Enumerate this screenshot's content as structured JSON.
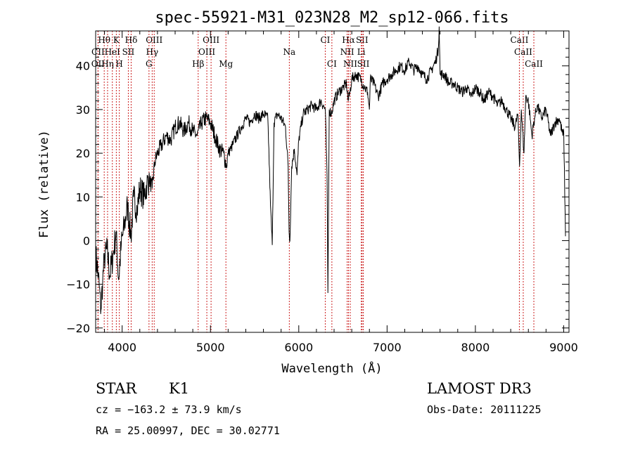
{
  "chart_data": {
    "type": "line",
    "title": "spec-55921-M31_023N28_M2_sp12-066.fits",
    "xlabel": "Wavelength (Å)",
    "ylabel": "Flux (relative)",
    "xlim": [
      3700,
      9060
    ],
    "ylim": [
      -21,
      48
    ],
    "xticks": [
      4000,
      5000,
      6000,
      7000,
      8000,
      9000
    ],
    "yticks": [
      -20,
      -10,
      0,
      10,
      20,
      30,
      40
    ],
    "grid": false,
    "series": [
      {
        "name": "flux",
        "points": [
          [
            3700,
            -3
          ],
          [
            3730,
            -8
          ],
          [
            3760,
            -16
          ],
          [
            3780,
            -9
          ],
          [
            3800,
            -4
          ],
          [
            3830,
            -2
          ],
          [
            3860,
            -8
          ],
          [
            3900,
            -3
          ],
          [
            3930,
            2
          ],
          [
            3960,
            -9
          ],
          [
            3990,
            -1
          ],
          [
            4030,
            4
          ],
          [
            4060,
            8
          ],
          [
            4100,
            1
          ],
          [
            4130,
            10
          ],
          [
            4170,
            7
          ],
          [
            4200,
            12
          ],
          [
            4250,
            10
          ],
          [
            4280,
            13
          ],
          [
            4310,
            14
          ],
          [
            4340,
            12
          ],
          [
            4370,
            18
          ],
          [
            4400,
            20
          ],
          [
            4450,
            22
          ],
          [
            4500,
            24
          ],
          [
            4550,
            23
          ],
          [
            4600,
            26
          ],
          [
            4650,
            27
          ],
          [
            4700,
            25
          ],
          [
            4750,
            27
          ],
          [
            4800,
            25
          ],
          [
            4850,
            24
          ],
          [
            4900,
            27
          ],
          [
            4950,
            28
          ],
          [
            5000,
            27
          ],
          [
            5050,
            24
          ],
          [
            5100,
            21
          ],
          [
            5150,
            20
          ],
          [
            5180,
            17
          ],
          [
            5200,
            20
          ],
          [
            5230,
            21
          ],
          [
            5300,
            24
          ],
          [
            5350,
            26
          ],
          [
            5400,
            28
          ],
          [
            5450,
            27
          ],
          [
            5500,
            29
          ],
          [
            5550,
            28
          ],
          [
            5600,
            29
          ],
          [
            5650,
            28
          ],
          [
            5680,
            8
          ],
          [
            5700,
            -1
          ],
          [
            5720,
            27
          ],
          [
            5760,
            29
          ],
          [
            5800,
            28
          ],
          [
            5850,
            26
          ],
          [
            5880,
            17
          ],
          [
            5890,
            2
          ],
          [
            5900,
            0
          ],
          [
            5920,
            17
          ],
          [
            5950,
            21
          ],
          [
            5980,
            15
          ],
          [
            6000,
            23
          ],
          [
            6050,
            29
          ],
          [
            6100,
            30
          ],
          [
            6150,
            31
          ],
          [
            6200,
            30
          ],
          [
            6250,
            32
          ],
          [
            6300,
            30
          ],
          [
            6320,
            15
          ],
          [
            6330,
            -12
          ],
          [
            6345,
            30
          ],
          [
            6370,
            29
          ],
          [
            6400,
            32
          ],
          [
            6450,
            34
          ],
          [
            6500,
            35
          ],
          [
            6540,
            36
          ],
          [
            6560,
            32
          ],
          [
            6580,
            34
          ],
          [
            6600,
            37
          ],
          [
            6650,
            38
          ],
          [
            6700,
            37
          ],
          [
            6750,
            35
          ],
          [
            6780,
            34
          ],
          [
            6800,
            30
          ],
          [
            6810,
            37
          ],
          [
            6850,
            36
          ],
          [
            6900,
            33
          ],
          [
            6950,
            36
          ],
          [
            7000,
            37
          ],
          [
            7050,
            38
          ],
          [
            7100,
            39
          ],
          [
            7150,
            40
          ],
          [
            7200,
            39
          ],
          [
            7250,
            41
          ],
          [
            7300,
            39
          ],
          [
            7350,
            40
          ],
          [
            7400,
            38
          ],
          [
            7450,
            37
          ],
          [
            7500,
            39
          ],
          [
            7550,
            41
          ],
          [
            7580,
            44
          ],
          [
            7590,
            49
          ],
          [
            7600,
            38
          ],
          [
            7650,
            38
          ],
          [
            7700,
            36
          ],
          [
            7750,
            36
          ],
          [
            7800,
            35
          ],
          [
            7850,
            34
          ],
          [
            7900,
            35
          ],
          [
            7950,
            33
          ],
          [
            8000,
            35
          ],
          [
            8050,
            34
          ],
          [
            8100,
            32
          ],
          [
            8150,
            34
          ],
          [
            8200,
            33
          ],
          [
            8250,
            31
          ],
          [
            8300,
            32
          ],
          [
            8350,
            30
          ],
          [
            8400,
            28
          ],
          [
            8450,
            26
          ],
          [
            8480,
            29
          ],
          [
            8500,
            17
          ],
          [
            8520,
            30
          ],
          [
            8550,
            20
          ],
          [
            8570,
            33
          ],
          [
            8600,
            32
          ],
          [
            8640,
            24
          ],
          [
            8670,
            28
          ],
          [
            8700,
            31
          ],
          [
            8750,
            28
          ],
          [
            8800,
            30
          ],
          [
            8850,
            24
          ],
          [
            8900,
            27
          ],
          [
            8950,
            28
          ],
          [
            8990,
            24
          ],
          [
            9000,
            25
          ],
          [
            9020,
            1
          ]
        ]
      }
    ],
    "line_markers": [
      {
        "label": "Hθ",
        "x": 3797,
        "row": 1
      },
      {
        "label": "K",
        "x": 3934,
        "row": 1
      },
      {
        "label": "Hδ",
        "x": 4102,
        "row": 1
      },
      {
        "label": "OIII",
        "x": 4363,
        "row": 1
      },
      {
        "label": "OIII",
        "x": 5007,
        "row": 1
      },
      {
        "label": "CI",
        "x": 6300,
        "row": 1
      },
      {
        "label": "Hα",
        "x": 6563,
        "row": 1
      },
      {
        "label": "SII",
        "x": 6717,
        "row": 1
      },
      {
        "label": "CaII",
        "x": 8498,
        "row": 1
      },
      {
        "label": "CII",
        "x": 3727,
        "row": 2
      },
      {
        "label": "HeI",
        "x": 3889,
        "row": 2
      },
      {
        "label": "SII",
        "x": 4070,
        "row": 2
      },
      {
        "label": "Hγ",
        "x": 4340,
        "row": 2
      },
      {
        "label": "OIII",
        "x": 4959,
        "row": 2
      },
      {
        "label": "Na",
        "x": 5893,
        "row": 2
      },
      {
        "label": "NII",
        "x": 6548,
        "row": 2
      },
      {
        "label": "Li",
        "x": 6708,
        "row": 2
      },
      {
        "label": "CaII",
        "x": 8542,
        "row": 2
      },
      {
        "label": "OII",
        "x": 3727,
        "row": 3
      },
      {
        "label": "Hη",
        "x": 3835,
        "row": 3
      },
      {
        "label": "H",
        "x": 3968,
        "row": 3
      },
      {
        "label": "G",
        "x": 4304,
        "row": 3
      },
      {
        "label": "Hβ",
        "x": 4861,
        "row": 3
      },
      {
        "label": "Mg",
        "x": 5175,
        "row": 3
      },
      {
        "label": "CI",
        "x": 6375,
        "row": 3
      },
      {
        "label": "NII",
        "x": 6583,
        "row": 3
      },
      {
        "label": "SII",
        "x": 6731,
        "row": 3
      },
      {
        "label": "CaII",
        "x": 8662,
        "row": 3
      }
    ]
  },
  "info": {
    "object_class": "STAR",
    "subclass": "K1",
    "survey": "LAMOST DR3",
    "cz": "cz = −163.2 ± 73.9 km/s",
    "obs_date": "Obs-Date: 20111225",
    "coords": "RA =  25.00997, DEC =  30.02771"
  },
  "colors": {
    "line_marker": "#cc2222",
    "trace": "#000000"
  }
}
